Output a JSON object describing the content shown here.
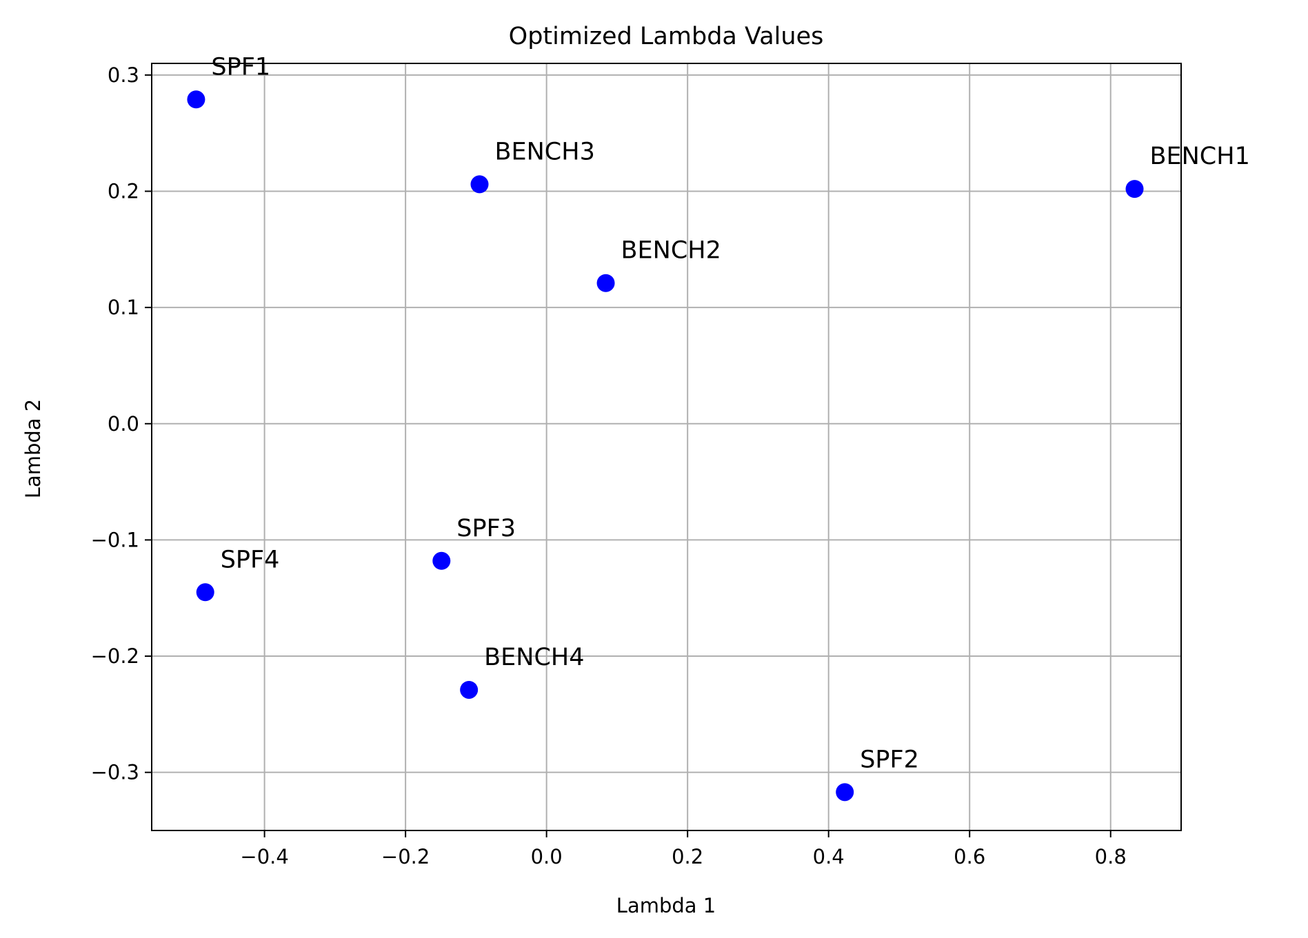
{
  "chart_data": {
    "type": "scatter",
    "title": "Optimized Lambda Values",
    "xlabel": "Lambda 1",
    "ylabel": "Lambda 2",
    "xlim": [
      -0.56,
      0.9
    ],
    "ylim": [
      -0.35,
      0.31
    ],
    "xticks": [
      -0.4,
      -0.2,
      0.0,
      0.2,
      0.4,
      0.6,
      0.8
    ],
    "xtick_labels": [
      "−0.4",
      "−0.2",
      "0.0",
      "0.2",
      "0.4",
      "0.6",
      "0.8"
    ],
    "yticks": [
      -0.3,
      -0.2,
      -0.1,
      0.0,
      0.1,
      0.2,
      0.3
    ],
    "ytick_labels": [
      "−0.3",
      "−0.2",
      "−0.1",
      "0.0",
      "0.1",
      "0.2",
      "0.3"
    ],
    "grid": true,
    "marker_color": "#0000ff",
    "points": [
      {
        "label": "SPF1",
        "x": -0.497,
        "y": 0.279
      },
      {
        "label": "BENCH3",
        "x": -0.095,
        "y": 0.206
      },
      {
        "label": "BENCH1",
        "x": 0.834,
        "y": 0.202
      },
      {
        "label": "BENCH2",
        "x": 0.084,
        "y": 0.121
      },
      {
        "label": "SPF3",
        "x": -0.149,
        "y": -0.118
      },
      {
        "label": "SPF4",
        "x": -0.484,
        "y": -0.145
      },
      {
        "label": "BENCH4",
        "x": -0.11,
        "y": -0.229
      },
      {
        "label": "SPF2",
        "x": 0.423,
        "y": -0.317
      }
    ]
  }
}
